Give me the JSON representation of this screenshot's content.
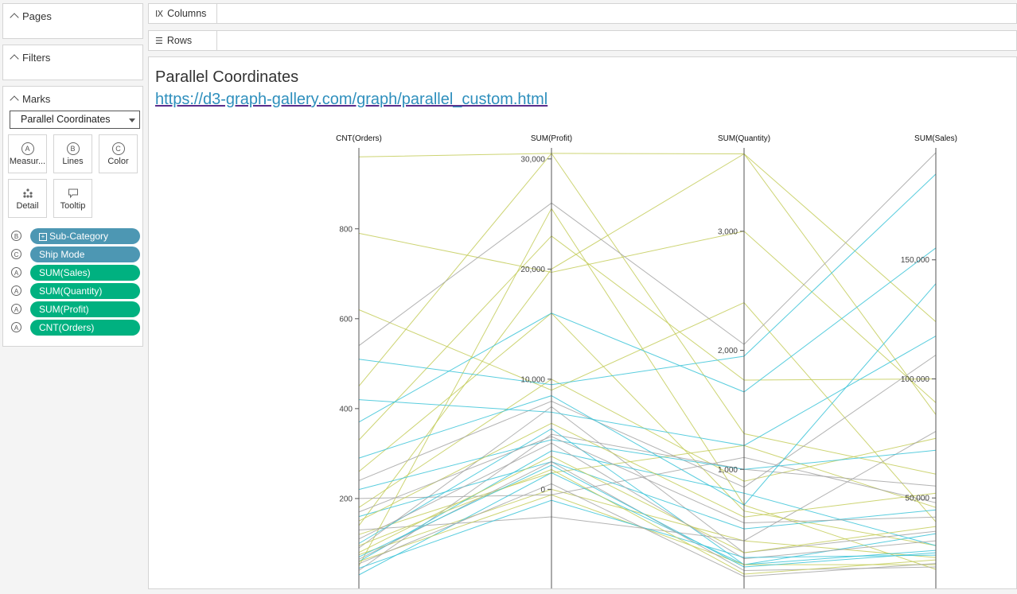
{
  "sidebar": {
    "pages_title": "Pages",
    "filters_title": "Filters",
    "marks_title": "Marks",
    "mark_type": "Parallel Coordinates",
    "mark_buttons": [
      {
        "icon": "A",
        "label": "Measur..."
      },
      {
        "icon": "B",
        "label": "Lines"
      },
      {
        "icon": "C",
        "label": "Color"
      },
      {
        "icon": "detail-icon",
        "label": "Detail"
      },
      {
        "icon": "tooltip-icon",
        "label": "Tooltip"
      }
    ],
    "fields": [
      {
        "role": "B",
        "label": "Sub-Category",
        "kind": "dimension"
      },
      {
        "role": "C",
        "label": "Ship Mode",
        "kind": "dimension"
      },
      {
        "role": "A",
        "label": "SUM(Sales)",
        "kind": "measure"
      },
      {
        "role": "A",
        "label": "SUM(Quantity)",
        "kind": "measure"
      },
      {
        "role": "A",
        "label": "SUM(Profit)",
        "kind": "measure"
      },
      {
        "role": "A",
        "label": "CNT(Orders)",
        "kind": "measure"
      }
    ]
  },
  "shelves": {
    "columns": "Columns",
    "rows": "Rows"
  },
  "viz": {
    "title": "Parallel Coordinates",
    "link": "https://d3-graph-gallery.com/graph/parallel_custom.html"
  },
  "colors": {
    "dimension_pill": "#4d97b3",
    "measure_pill": "#00b180",
    "teal_line": "#3cc4d8",
    "olive_line": "#c4cc5a",
    "gray_line": "#a6a6a6"
  },
  "chart_data": {
    "type": "line",
    "axes": [
      {
        "name": "CNT(Orders)",
        "ticks": [
          {
            "v": 200,
            "t": "200"
          },
          {
            "v": 400,
            "t": "400"
          },
          {
            "v": 600,
            "t": "600"
          },
          {
            "v": 800,
            "t": "800"
          }
        ],
        "range": [
          0,
          980
        ]
      },
      {
        "name": "SUM(Profit)",
        "ticks": [
          {
            "v": 0,
            "t": "0"
          },
          {
            "v": 10000,
            "t": "10,000"
          },
          {
            "v": 20000,
            "t": "20,000"
          },
          {
            "v": 30000,
            "t": "30,000"
          }
        ],
        "range": [
          -9000,
          31000
        ]
      },
      {
        "name": "SUM(Quantity)",
        "ticks": [
          {
            "v": 1000,
            "t": "1,000"
          },
          {
            "v": 2000,
            "t": "2,000"
          },
          {
            "v": 3000,
            "t": "3,000"
          }
        ],
        "range": [
          0,
          3700
        ]
      },
      {
        "name": "SUM(Sales)",
        "ticks": [
          {
            "v": 50000,
            "t": "50,000"
          },
          {
            "v": 100000,
            "t": "100,000"
          },
          {
            "v": 150000,
            "t": "150,000"
          }
        ],
        "range": [
          12000,
          197000
        ]
      }
    ],
    "series": [
      {
        "c": "olive",
        "v": [
          960,
          30500,
          3650,
          124000
        ]
      },
      {
        "c": "olive",
        "v": [
          790,
          19700,
          3000,
          90000
        ]
      },
      {
        "c": "olive",
        "v": [
          620,
          9000,
          2400,
          40000
        ]
      },
      {
        "c": "olive",
        "v": [
          450,
          30500,
          1300,
          60000
        ]
      },
      {
        "c": "olive",
        "v": [
          330,
          23000,
          1750,
          100000
        ]
      },
      {
        "c": "olive",
        "v": [
          260,
          16000,
          650,
          30000
        ]
      },
      {
        "c": "olive",
        "v": [
          180,
          10000,
          900,
          75000
        ]
      },
      {
        "c": "olive",
        "v": [
          120,
          1500,
          1200,
          46000
        ]
      },
      {
        "c": "olive",
        "v": [
          140,
          20000,
          3650,
          85000
        ]
      },
      {
        "c": "olive",
        "v": [
          50,
          25500,
          700,
          20000
        ]
      },
      {
        "c": "olive",
        "v": [
          75,
          0,
          400,
          25000
        ]
      },
      {
        "c": "gray",
        "v": [
          540,
          26000,
          2050,
          195000
        ]
      },
      {
        "c": "gray",
        "v": [
          240,
          8000,
          850,
          110000
        ]
      },
      {
        "c": "gray",
        "v": [
          130,
          -2500,
          400,
          78000
        ]
      },
      {
        "c": "gray",
        "v": [
          40,
          5000,
          1000,
          55000
        ]
      },
      {
        "c": "gray",
        "v": [
          90,
          7500,
          300,
          36000
        ]
      },
      {
        "c": "gray",
        "v": [
          200,
          -500,
          1100,
          48000
        ]
      },
      {
        "c": "teal",
        "v": [
          510,
          9500,
          1950,
          186000
        ]
      },
      {
        "c": "teal",
        "v": [
          370,
          16000,
          1650,
          155000
        ]
      },
      {
        "c": "teal",
        "v": [
          290,
          8500,
          700,
          140000
        ]
      },
      {
        "c": "teal",
        "v": [
          220,
          4500,
          1000,
          70000
        ]
      },
      {
        "c": "teal",
        "v": [
          160,
          2500,
          500,
          45000
        ]
      },
      {
        "c": "teal",
        "v": [
          100,
          5500,
          200,
          35000
        ]
      },
      {
        "c": "teal",
        "v": [
          60,
          3500,
          800,
          30000
        ]
      },
      {
        "c": "teal",
        "v": [
          420,
          7000,
          1200,
          118000
        ]
      },
      {
        "c": "teal",
        "v": [
          30,
          1500,
          200,
          28000
        ]
      },
      {
        "c": "olive",
        "v": [
          60,
          -500,
          200,
          22000
        ]
      },
      {
        "c": "gray",
        "v": [
          65,
          2500,
          150,
          21000
        ]
      },
      {
        "c": "olive",
        "v": [
          80,
          3000,
          300,
          38000
        ]
      },
      {
        "c": "gray",
        "v": [
          110,
          4200,
          250,
          32000
        ]
      },
      {
        "c": "teal",
        "v": [
          45,
          -1000,
          260,
          26000
        ]
      },
      {
        "c": "olive",
        "v": [
          95,
          1800,
          120,
          24000
        ]
      },
      {
        "c": "gray",
        "v": [
          55,
          500,
          100,
          22500
        ]
      },
      {
        "c": "teal",
        "v": [
          70,
          2200,
          180,
          27000
        ]
      },
      {
        "c": "olive",
        "v": [
          150,
          6000,
          600,
          52000
        ]
      },
      {
        "c": "gray",
        "v": [
          170,
          4800,
          550,
          42000
        ]
      }
    ]
  }
}
